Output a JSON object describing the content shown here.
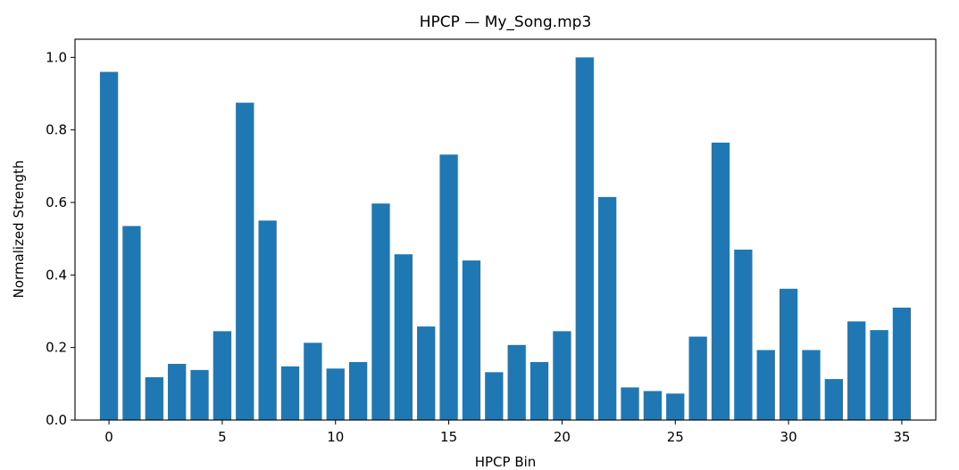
{
  "chart_data": {
    "type": "bar",
    "title": "HPCP — My_Song.mp3",
    "xlabel": "HPCP Bin",
    "ylabel": "Normalized Strength",
    "xlim": [
      -1.5,
      36.5
    ],
    "ylim": [
      0,
      1.05
    ],
    "xticks": [
      0,
      5,
      10,
      15,
      20,
      25,
      30,
      35
    ],
    "yticks": [
      0.0,
      0.2,
      0.4,
      0.6,
      0.8,
      1.0
    ],
    "ytick_labels": [
      "0.0",
      "0.2",
      "0.4",
      "0.6",
      "0.8",
      "1.0"
    ],
    "categories": [
      0,
      1,
      2,
      3,
      4,
      5,
      6,
      7,
      8,
      9,
      10,
      11,
      12,
      13,
      14,
      15,
      16,
      17,
      18,
      19,
      20,
      21,
      22,
      23,
      24,
      25,
      26,
      27,
      28,
      29,
      30,
      31,
      32,
      33,
      34,
      35
    ],
    "values": [
      0.96,
      0.535,
      0.118,
      0.155,
      0.138,
      0.245,
      0.875,
      0.55,
      0.148,
      0.213,
      0.142,
      0.16,
      0.597,
      0.457,
      0.258,
      0.732,
      0.44,
      0.132,
      0.207,
      0.16,
      0.245,
      1.0,
      0.615,
      0.09,
      0.08,
      0.073,
      0.23,
      0.765,
      0.47,
      0.193,
      0.362,
      0.193,
      0.113,
      0.272,
      0.248,
      0.31
    ],
    "bar_color": "#1f77b4",
    "grid": false,
    "legend": "none"
  }
}
